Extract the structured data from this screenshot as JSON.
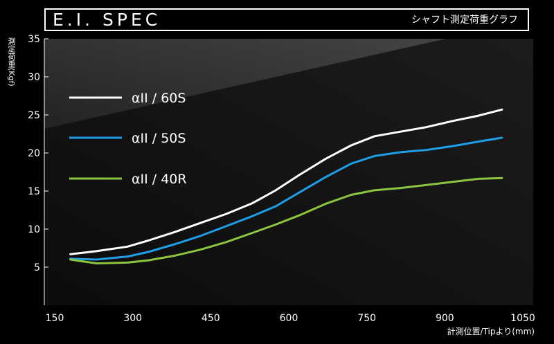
{
  "header": {
    "title": "E.I. SPEC",
    "subtitle": "シャフト測定荷重グラフ"
  },
  "colors": {
    "background": "#000000",
    "plot_dark": "#141414",
    "plot_light": "#3a3a3a",
    "series_60S": "#ffffff",
    "series_50S": "#1e9ee6",
    "series_40R": "#8cc63e"
  },
  "chart_data": {
    "type": "line",
    "title": "E.I. SPEC",
    "subtitle": "シャフト測定荷重グラフ",
    "xlabel": "計測位置/Tipより(mm)",
    "ylabel": "測定荷重(Kgf)",
    "xlim": [
      130,
      1070
    ],
    "ylim": [
      0,
      35
    ],
    "xticks": [
      150,
      300,
      450,
      600,
      750,
      900,
      1050
    ],
    "yticks": [
      5,
      10,
      15,
      20,
      25,
      30,
      35
    ],
    "grid": false,
    "legend_position": "top-left",
    "series": [
      {
        "name": "αII / 60S",
        "color": "#ffffff",
        "x": [
          180,
          230,
          290,
          330,
          380,
          430,
          480,
          530,
          575,
          620,
          670,
          720,
          765,
          815,
          865,
          915,
          965,
          1010
        ],
        "y": [
          6.7,
          7.1,
          7.7,
          8.5,
          9.6,
          10.8,
          12.0,
          13.4,
          15.1,
          17.1,
          19.2,
          21.0,
          22.2,
          22.8,
          23.4,
          24.2,
          24.9,
          25.7
        ]
      },
      {
        "name": "αII / 50S",
        "color": "#1e9ee6",
        "x": [
          180,
          230,
          290,
          330,
          380,
          430,
          480,
          530,
          575,
          620,
          670,
          720,
          765,
          815,
          865,
          915,
          965,
          1010
        ],
        "y": [
          6.1,
          6.0,
          6.4,
          7.0,
          8.0,
          9.1,
          10.4,
          11.7,
          13.0,
          14.8,
          16.8,
          18.6,
          19.6,
          20.1,
          20.4,
          20.9,
          21.5,
          22.0
        ]
      },
      {
        "name": "αII / 40R",
        "color": "#8cc63e",
        "x": [
          180,
          230,
          290,
          330,
          380,
          430,
          480,
          530,
          575,
          620,
          670,
          720,
          765,
          815,
          865,
          915,
          965,
          1010
        ],
        "y": [
          6.0,
          5.5,
          5.6,
          5.9,
          6.5,
          7.3,
          8.3,
          9.5,
          10.6,
          11.8,
          13.3,
          14.5,
          15.1,
          15.4,
          15.8,
          16.2,
          16.6,
          16.7
        ]
      }
    ]
  }
}
